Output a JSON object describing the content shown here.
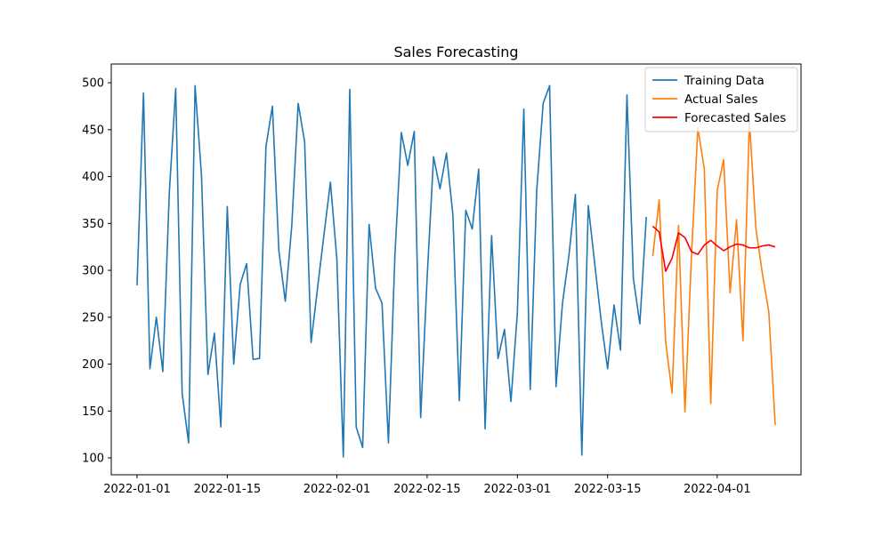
{
  "chart_data": {
    "type": "line",
    "title": "Sales Forecasting",
    "xlabel": "",
    "ylabel": "",
    "xlim": [
      "2021-12-28",
      "2022-04-14"
    ],
    "ylim": [
      82,
      520
    ],
    "x_ticks": [
      "2022-01-01",
      "2022-01-15",
      "2022-02-01",
      "2022-02-15",
      "2022-03-01",
      "2022-03-15",
      "2022-04-01"
    ],
    "y_ticks": [
      100,
      150,
      200,
      250,
      300,
      350,
      400,
      450,
      500
    ],
    "grid": false,
    "legend_position": "top-right",
    "series": [
      {
        "name": "Training Data",
        "color": "#1f77b4",
        "start_date": "2022-01-01",
        "values": [
          284,
          489,
          195,
          250,
          192,
          382,
          494,
          169,
          116,
          497,
          401,
          189,
          233,
          133,
          368,
          200,
          285,
          307,
          205,
          206,
          432,
          475,
          321,
          267,
          347,
          478,
          437,
          223,
          281,
          338,
          394,
          312,
          101,
          493,
          133,
          111,
          349,
          281,
          265,
          116,
          315,
          447,
          412,
          448,
          143,
          292,
          421,
          387,
          425,
          359,
          161,
          364,
          344,
          408,
          131,
          337,
          206,
          237,
          160,
          255,
          472,
          173,
          385,
          478,
          497,
          176,
          265,
          316,
          381,
          103,
          369,
          307,
          246,
          195,
          263,
          215,
          487,
          291,
          243,
          357
        ]
      },
      {
        "name": "Actual Sales",
        "color": "#ff7f0e",
        "start_date": "2022-03-22",
        "values": [
          315,
          375,
          224,
          169,
          348,
          149,
          314,
          452,
          408,
          158,
          385,
          418,
          276,
          354,
          225,
          460,
          345,
          297,
          256,
          135
        ]
      },
      {
        "name": "Forecasted Sales",
        "color": "#ff0000",
        "start_date": "2022-03-22",
        "values": [
          347,
          341,
          299,
          313,
          340,
          335,
          320,
          317,
          327,
          332,
          326,
          321,
          325,
          328,
          327,
          324,
          324,
          326,
          327,
          325
        ]
      }
    ]
  }
}
